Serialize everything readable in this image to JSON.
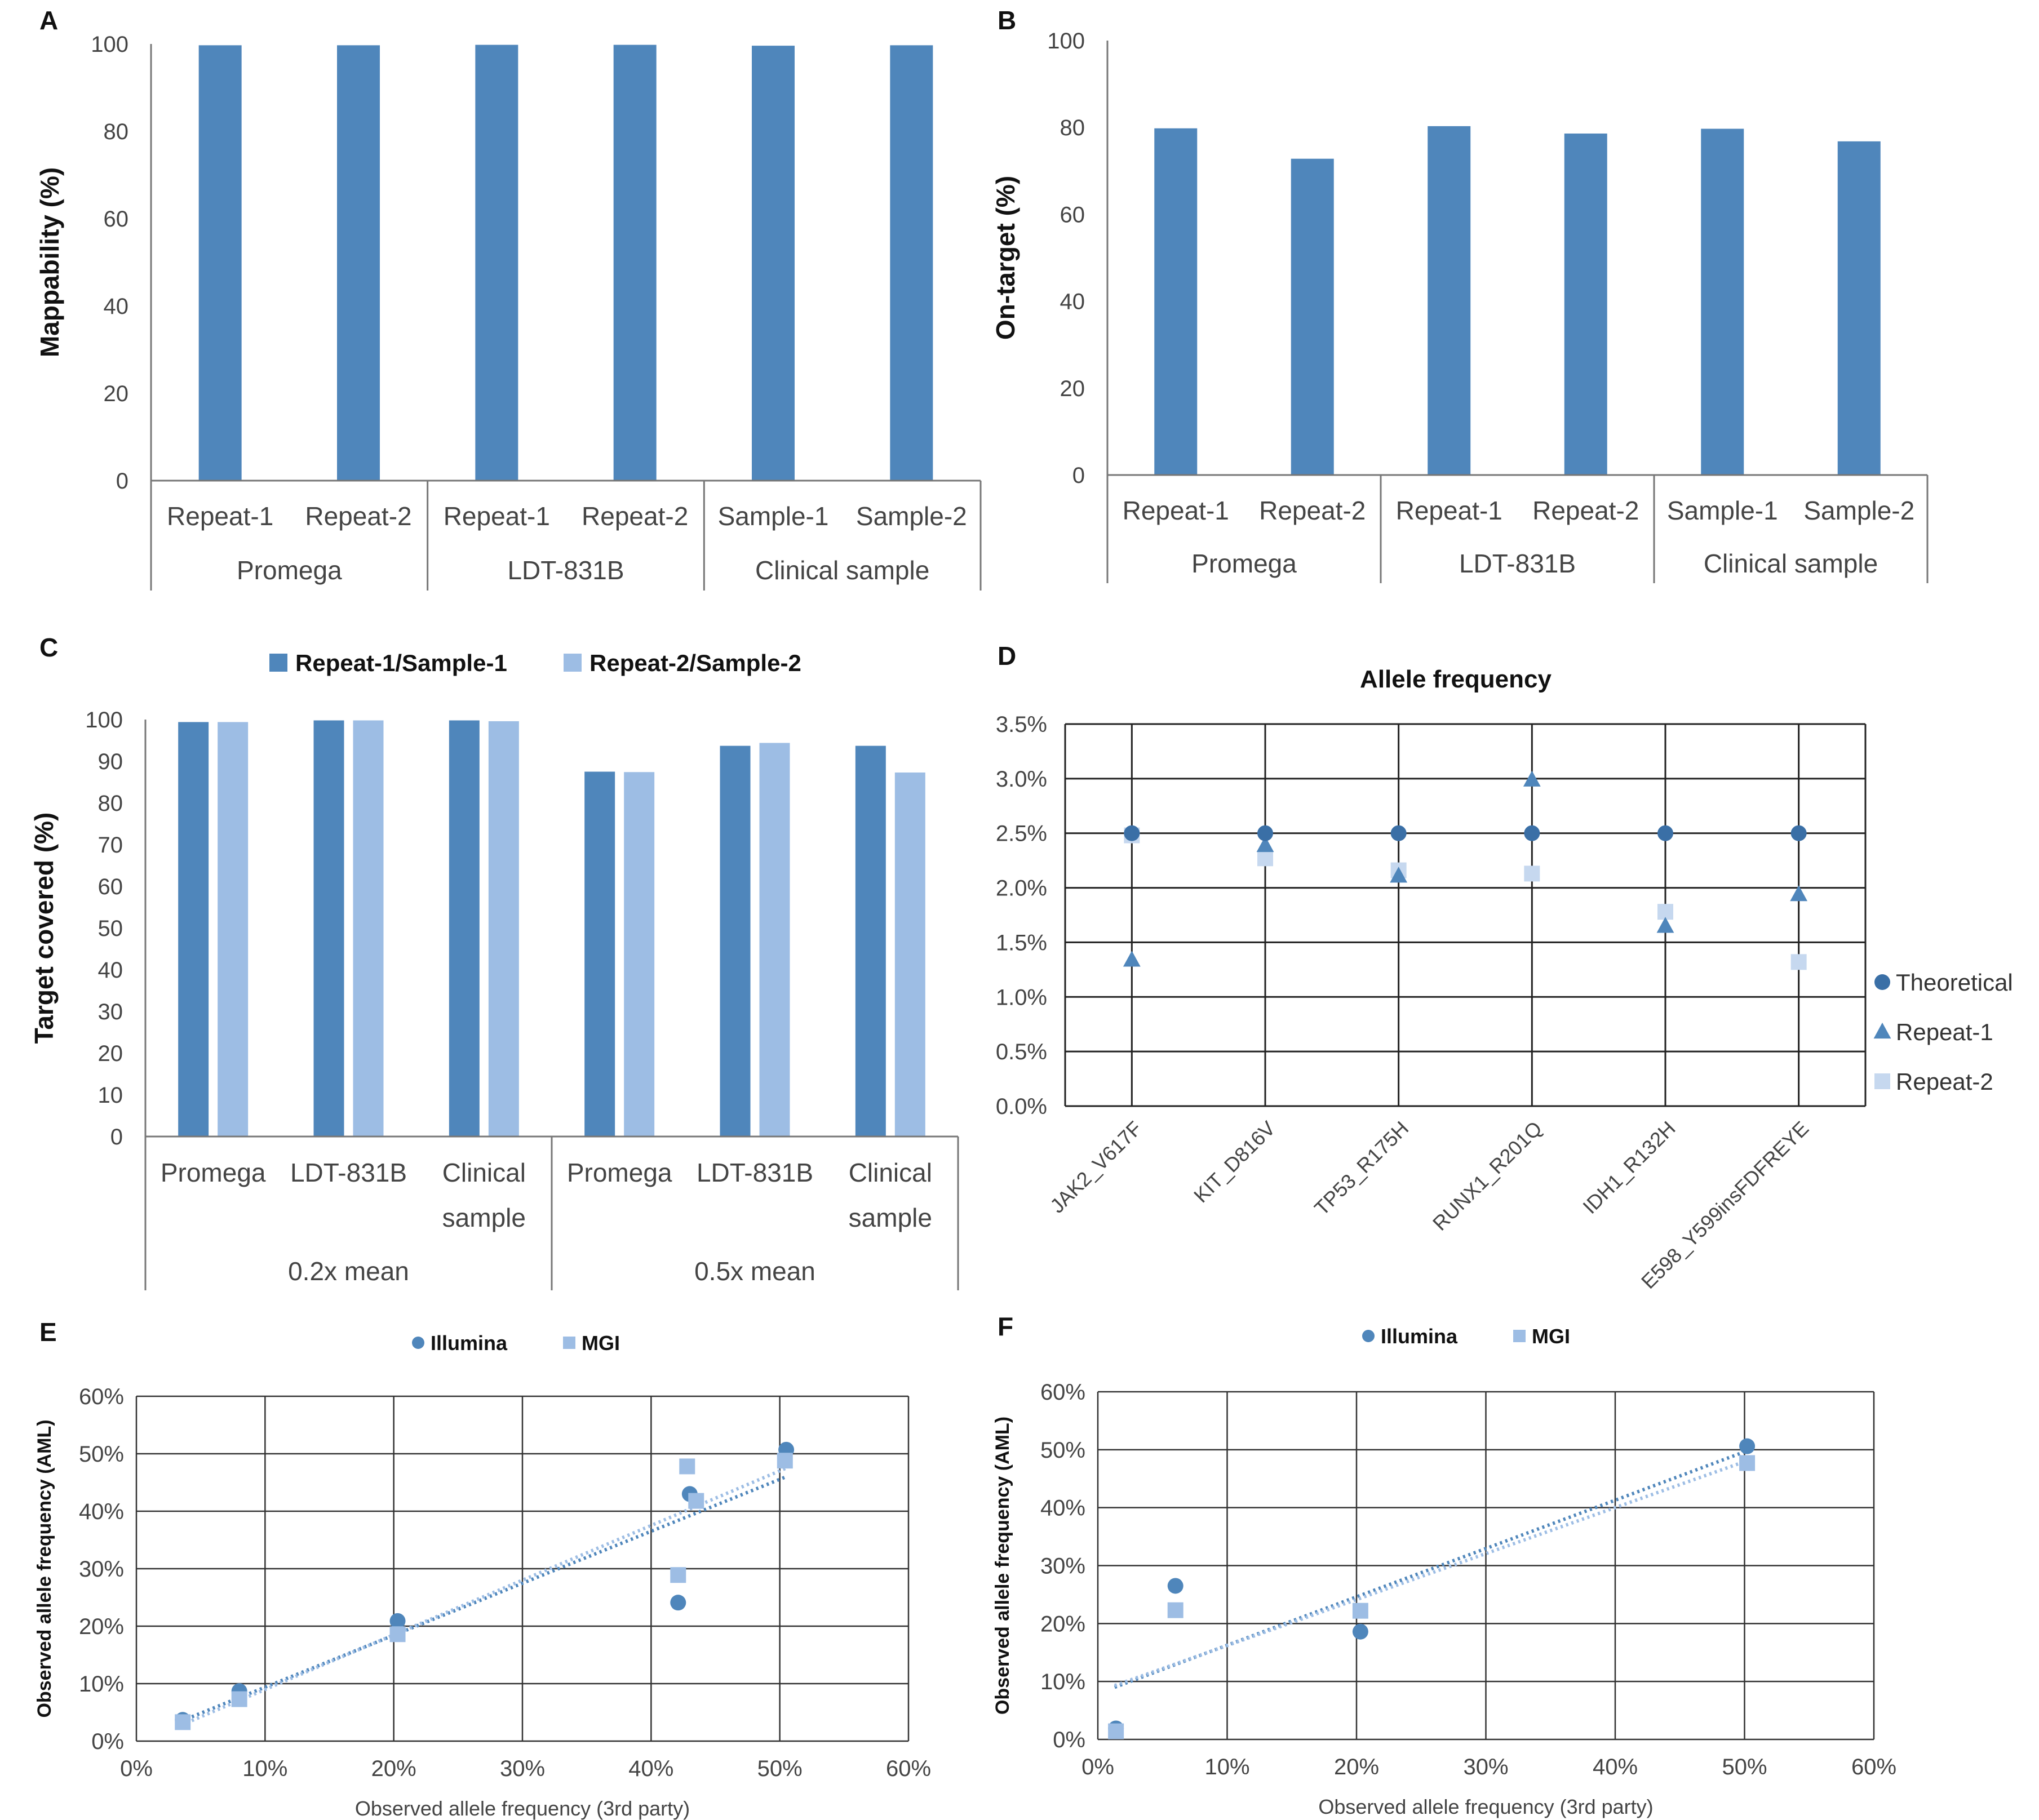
{
  "colors": {
    "dark": "#4f86bb",
    "light": "#9dbde4",
    "lighter": "#c6d8ef",
    "theoretical": "#3a6fa6"
  },
  "panels": {
    "A": "A",
    "B": "B",
    "C": "C",
    "D": "D",
    "E": "E",
    "F": "F"
  },
  "chart_data": [
    {
      "panel": "A",
      "type": "bar",
      "ylabel": "Mappability (%)",
      "ylim": [
        0,
        100
      ],
      "yticks": [
        "0",
        "20",
        "40",
        "60",
        "80",
        "100"
      ],
      "categories": [
        "Repeat-1",
        "Repeat-2",
        "Repeat-1",
        "Repeat-2",
        "Sample-1",
        "Sample-2"
      ],
      "groups": [
        "Promega",
        "LDT-831B",
        "Clinical sample"
      ],
      "values": [
        99.7,
        99.7,
        99.8,
        99.8,
        99.6,
        99.7
      ]
    },
    {
      "panel": "B",
      "type": "bar",
      "ylabel": "On-target (%)",
      "ylim": [
        0,
        100
      ],
      "yticks": [
        "0",
        "20",
        "40",
        "60",
        "80",
        "100"
      ],
      "categories": [
        "Repeat-1",
        "Repeat-2",
        "Repeat-1",
        "Repeat-2",
        "Sample-1",
        "Sample-2"
      ],
      "groups": [
        "Promega",
        "LDT-831B",
        "Clinical sample"
      ],
      "values": [
        79.8,
        72.8,
        80.3,
        78.6,
        79.7,
        76.8
      ]
    },
    {
      "panel": "C",
      "type": "bar",
      "ylabel": "Target covered (%)",
      "ylim": [
        0,
        100
      ],
      "yticks": [
        "0",
        "10",
        "20",
        "30",
        "40",
        "50",
        "60",
        "70",
        "80",
        "90",
        "100"
      ],
      "categories": [
        [
          "Promega"
        ],
        [
          "LDT-831B"
        ],
        [
          "Clinical",
          "sample"
        ],
        [
          "Promega"
        ],
        [
          "LDT-831B"
        ],
        [
          "Clinical",
          "sample"
        ]
      ],
      "groups": [
        "0.2x mean",
        "0.5x mean"
      ],
      "series": [
        {
          "name": "Repeat-1/Sample-1",
          "values": [
            99.4,
            99.8,
            99.8,
            87.5,
            93.7,
            93.7
          ]
        },
        {
          "name": "Repeat-2/Sample-2",
          "values": [
            99.4,
            99.8,
            99.6,
            87.4,
            94.4,
            87.3
          ]
        }
      ]
    },
    {
      "panel": "D",
      "type": "scatter",
      "title": "Allele frequency",
      "ylim": [
        0,
        0.035
      ],
      "yticks": [
        "0.0%",
        "0.5%",
        "1.0%",
        "1.5%",
        "2.0%",
        "2.5%",
        "3.0%",
        "3.5%"
      ],
      "categories": [
        "JAK2_V617F",
        "KIT_D816V",
        "TP53_R175H",
        "RUNX1_R201Q",
        "IDH1_R132H",
        "E598_Y599insFDFREYE"
      ],
      "series": [
        {
          "name": "Theoretical",
          "marker": "circle",
          "values": [
            0.025,
            0.025,
            0.025,
            0.025,
            0.025,
            0.025
          ]
        },
        {
          "name": "Repeat-1",
          "marker": "triangle",
          "values": [
            0.0134,
            0.0239,
            0.0211,
            0.0299,
            0.0165,
            0.0194
          ]
        },
        {
          "name": "Repeat-2",
          "marker": "square",
          "values": [
            0.0248,
            0.0227,
            0.0216,
            0.0213,
            0.0178,
            0.0132
          ]
        }
      ]
    },
    {
      "panel": "E",
      "type": "scatter",
      "xlabel": "Observed allele frequency (3rd party)",
      "ylabel": "Observed allele frequency (AML)",
      "xlim": [
        0,
        0.6
      ],
      "ylim": [
        0,
        0.6
      ],
      "xticks": [
        "0%",
        "10%",
        "20%",
        "30%",
        "40%",
        "50%",
        "60%"
      ],
      "yticks": [
        "0%",
        "10%",
        "20%",
        "30%",
        "40%",
        "50%",
        "60%"
      ],
      "series": [
        {
          "name": "Illumina",
          "marker": "circle",
          "trendline": [
            [
              0.035,
              0.035
            ],
            [
              0.505,
              0.46
            ]
          ],
          "points": [
            [
              0.036,
              0.037
            ],
            [
              0.08,
              0.087
            ],
            [
              0.203,
              0.209
            ],
            [
              0.421,
              0.241
            ],
            [
              0.43,
              0.43
            ],
            [
              0.505,
              0.507
            ]
          ]
        },
        {
          "name": "MGI",
          "marker": "square",
          "trendline": [
            [
              0.035,
              0.028
            ],
            [
              0.505,
              0.475
            ]
          ],
          "points": [
            [
              0.036,
              0.033
            ],
            [
              0.08,
              0.073
            ],
            [
              0.203,
              0.186
            ],
            [
              0.421,
              0.289
            ],
            [
              0.428,
              0.478
            ],
            [
              0.435,
              0.418
            ],
            [
              0.504,
              0.488
            ]
          ]
        }
      ]
    },
    {
      "panel": "F",
      "type": "scatter",
      "xlabel": "Observed allele frequency (3rd party)",
      "ylabel": "Observed allele frequency (AML)",
      "xlim": [
        0,
        0.6
      ],
      "ylim": [
        0,
        0.6
      ],
      "xticks": [
        "0%",
        "10%",
        "20%",
        "30%",
        "40%",
        "50%",
        "60%"
      ],
      "yticks": [
        "0%",
        "10%",
        "20%",
        "30%",
        "40%",
        "50%",
        "60%"
      ],
      "series": [
        {
          "name": "Illumina",
          "marker": "circle",
          "trendline": [
            [
              0.013,
              0.09
            ],
            [
              0.502,
              0.498
            ]
          ],
          "points": [
            [
              0.014,
              0.019
            ],
            [
              0.06,
              0.265
            ],
            [
              0.203,
              0.186
            ],
            [
              0.502,
              0.506
            ]
          ]
        },
        {
          "name": "MGI",
          "marker": "square",
          "trendline": [
            [
              0.013,
              0.093
            ],
            [
              0.502,
              0.481
            ]
          ],
          "points": [
            [
              0.014,
              0.014
            ],
            [
              0.06,
              0.223
            ],
            [
              0.203,
              0.222
            ],
            [
              0.502,
              0.477
            ]
          ]
        }
      ]
    }
  ]
}
